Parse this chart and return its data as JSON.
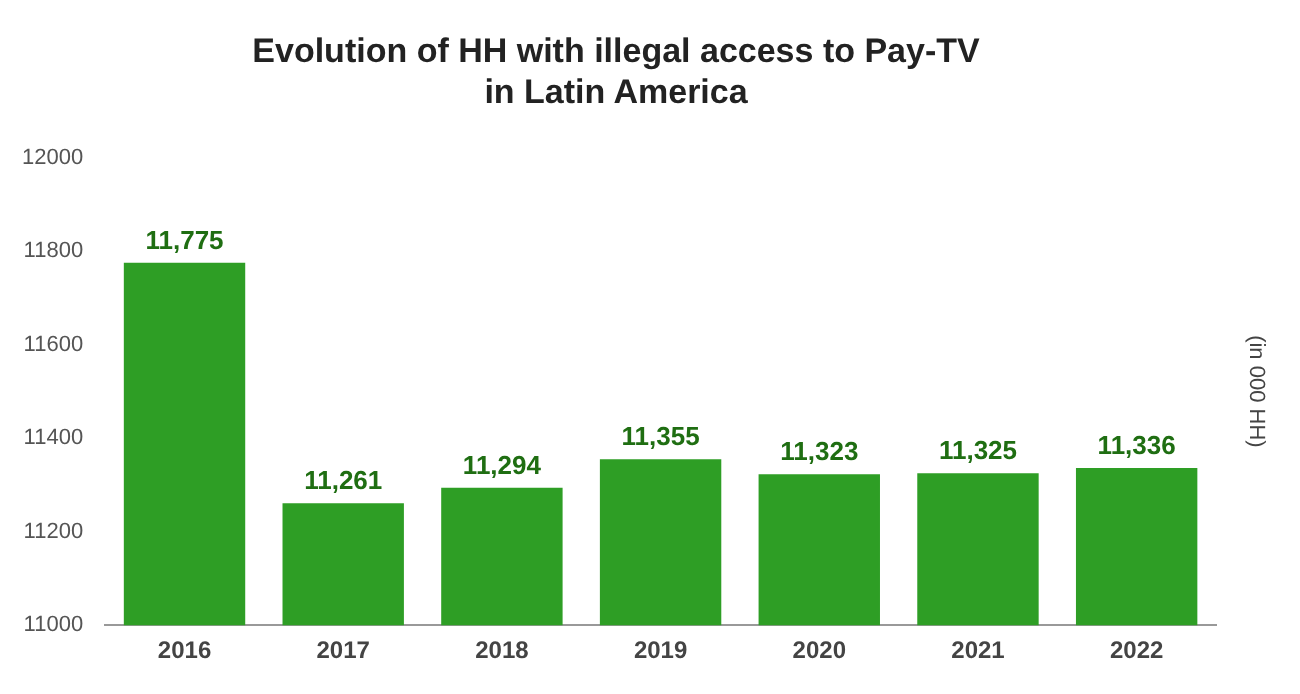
{
  "chart_data": {
    "type": "bar",
    "title": [
      "Evolution of HH with illegal access to Pay-TV",
      "in Latin America"
    ],
    "ylabel": "(in 000 HH)",
    "categories": [
      "2016",
      "2017",
      "2018",
      "2019",
      "2020",
      "2021",
      "2022"
    ],
    "values": [
      11775,
      11261,
      11294,
      11355,
      11323,
      11325,
      11336
    ],
    "value_labels": [
      "11,775",
      "11,261",
      "11,294",
      "11,355",
      "11,323",
      "11,325",
      "11,336"
    ],
    "color": "#2e9e25",
    "ylim": [
      11000,
      12000
    ],
    "yticks": [
      11000,
      11200,
      11400,
      11600,
      11800,
      12000
    ],
    "grid": false,
    "legend": false
  }
}
